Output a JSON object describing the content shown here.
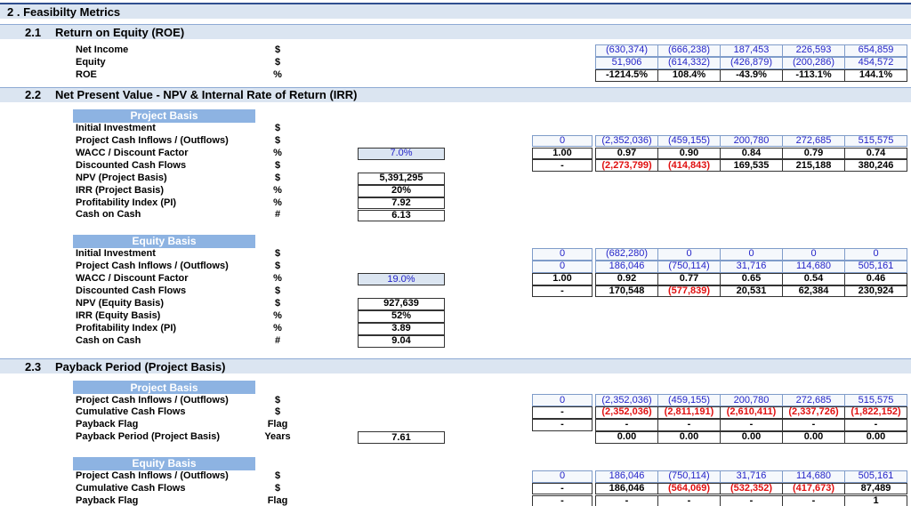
{
  "title": "2 . Feasibilty Metrics",
  "sections": [
    {
      "number": "2.1",
      "title": "Return on Equity (ROE)",
      "blocks": [
        {
          "rows": [
            {
              "label": "Net Income",
              "unit": "$",
              "kind": "input",
              "cells": [
                "(630,374)",
                "(666,238)",
                "187,453",
                "226,593",
                "654,859"
              ]
            },
            {
              "label": "Equity",
              "unit": "$",
              "kind": "input",
              "cells": [
                "51,906",
                "(614,332)",
                "(426,879)",
                "(200,286)",
                "454,572"
              ]
            },
            {
              "label": "ROE",
              "unit": "%",
              "kind": "calc",
              "cells": [
                "-1214.5%",
                "108.4%",
                "-43.9%",
                "-113.1%",
                "144.1%"
              ]
            }
          ]
        }
      ]
    },
    {
      "number": "2.2",
      "title": "Net Present Value - NPV & Internal Rate of Return (IRR)",
      "blocks": [
        {
          "heading": "Project Basis",
          "rows": [
            {
              "label": "Initial Investment",
              "unit": "$"
            },
            {
              "label": "Project Cash Inflows / (Outflows)",
              "unit": "$",
              "kind": "input",
              "lead": "0",
              "cells": [
                "(2,352,036)",
                "(459,155)",
                "200,780",
                "272,685",
                "515,575"
              ]
            },
            {
              "label": "WACC / Discount Factor",
              "unit": "%",
              "kind": "calc",
              "box": "7.0%",
              "box_kind": "input",
              "lead": "1.00",
              "cells": [
                "0.97",
                "0.90",
                "0.84",
                "0.79",
                "0.74"
              ]
            },
            {
              "label": "Discounted Cash Flows",
              "unit": "$",
              "kind": "calc",
              "lead": "-",
              "cells": [
                "(2,273,799)",
                "(414,843)",
                "169,535",
                "215,188",
                "380,246"
              ]
            },
            {
              "label": "NPV (Project Basis)",
              "unit": "$",
              "box": "5,391,295"
            },
            {
              "label": "IRR (Project Basis)",
              "unit": "%",
              "box": "20%"
            },
            {
              "label": "Profitability Index (PI)",
              "unit": "%",
              "box": "7.92"
            },
            {
              "label": "Cash on Cash",
              "unit": "#",
              "box": "6.13"
            }
          ]
        },
        {
          "heading": "Equity Basis",
          "rows": [
            {
              "label": "Initial Investment",
              "unit": "$",
              "kind": "input",
              "lead": "0",
              "cells": [
                "(682,280)",
                "0",
                "0",
                "0",
                "0"
              ]
            },
            {
              "label": "Project Cash Inflows / (Outflows)",
              "unit": "$",
              "kind": "input",
              "lead": "0",
              "cells": [
                "186,046",
                "(750,114)",
                "31,716",
                "114,680",
                "505,161"
              ]
            },
            {
              "label": "WACC / Discount Factor",
              "unit": "%",
              "kind": "calc",
              "box": "19.0%",
              "box_kind": "input",
              "lead": "1.00",
              "cells": [
                "0.92",
                "0.77",
                "0.65",
                "0.54",
                "0.46"
              ]
            },
            {
              "label": "Discounted Cash Flows",
              "unit": "$",
              "kind": "calc",
              "lead": "-",
              "cells": [
                "170,548",
                "(577,839)",
                "20,531",
                "62,384",
                "230,924"
              ]
            },
            {
              "label": "NPV (Equity Basis)",
              "unit": "$",
              "box": "927,639"
            },
            {
              "label": "IRR (Equity Basis)",
              "unit": "%",
              "box": "52%"
            },
            {
              "label": "Profitability Index (PI)",
              "unit": "%",
              "box": "3.89"
            },
            {
              "label": "Cash on Cash",
              "unit": "#",
              "box": "9.04"
            }
          ]
        }
      ]
    },
    {
      "number": "2.3",
      "title": "Payback Period (Project Basis)",
      "blocks": [
        {
          "heading": "Project Basis",
          "rows": [
            {
              "label": "Project Cash Inflows / (Outflows)",
              "unit": "$",
              "kind": "input",
              "lead": "0",
              "cells": [
                "(2,352,036)",
                "(459,155)",
                "200,780",
                "272,685",
                "515,575"
              ]
            },
            {
              "label": "Cumulative Cash Flows",
              "unit": "$",
              "kind": "calc",
              "lead": "-",
              "cells": [
                "(2,352,036)",
                "(2,811,191)",
                "(2,610,411)",
                "(2,337,726)",
                "(1,822,152)"
              ]
            },
            {
              "label": "Payback Flag",
              "unit": "Flag",
              "kind": "calc",
              "lead": "-",
              "cells": [
                "-",
                "-",
                "-",
                "-",
                "-"
              ]
            },
            {
              "label": "Payback Period (Project Basis)",
              "unit": "Years",
              "box": "7.61",
              "kind": "calc",
              "cells": [
                "0.00",
                "0.00",
                "0.00",
                "0.00",
                "0.00"
              ]
            }
          ]
        },
        {
          "heading": "Equity Basis",
          "rows": [
            {
              "label": "Project Cash Inflows / (Outflows)",
              "unit": "$",
              "kind": "input",
              "lead": "0",
              "cells": [
                "186,046",
                "(750,114)",
                "31,716",
                "114,680",
                "505,161"
              ]
            },
            {
              "label": "Cumulative Cash Flows",
              "unit": "$",
              "kind": "calc",
              "lead": "-",
              "cells": [
                "186,046",
                "(564,069)",
                "(532,352)",
                "(417,673)",
                "87,489"
              ]
            },
            {
              "label": "Payback Flag",
              "unit": "Flag",
              "kind": "calc",
              "lead": "-",
              "cells": [
                "-",
                "-",
                "-",
                "-",
                "1"
              ]
            }
          ]
        }
      ]
    }
  ]
}
